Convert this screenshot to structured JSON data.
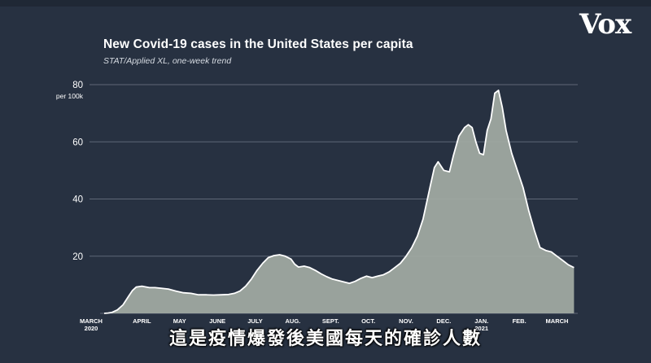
{
  "header": {
    "title": "New Covid-19 cases in the United States per capita",
    "subtitle": "STAT/Applied XL, one-week trend",
    "logo": "Vox"
  },
  "caption": "這是疫情爆發後美國每天的確診人數",
  "colors": {
    "background": "#273141",
    "area_fill": "#a3aba4",
    "line": "#ffffff",
    "grid": "#5f6877",
    "text": "#ffffff"
  },
  "chart_data": {
    "type": "area",
    "title": "New Covid-19 cases in the United States per capita",
    "subtitle": "STAT/Applied XL, one-week trend",
    "ylabel": "per 100k",
    "ylim": [
      0,
      80
    ],
    "yticks": [
      "20",
      "40",
      "60",
      "80"
    ],
    "grid": true,
    "xticks": [
      {
        "label": "MARCH",
        "sublabel": "2020",
        "x": 0
      },
      {
        "label": "APRIL",
        "x": 1
      },
      {
        "label": "MAY",
        "x": 2
      },
      {
        "label": "JUNE",
        "x": 3
      },
      {
        "label": "JULY",
        "x": 4
      },
      {
        "label": "AUG.",
        "x": 5
      },
      {
        "label": "SEPT.",
        "x": 6
      },
      {
        "label": "OCT.",
        "x": 7
      },
      {
        "label": "NOV.",
        "x": 8
      },
      {
        "label": "DEC.",
        "x": 9
      },
      {
        "label": "JAN.",
        "sublabel": "2021",
        "x": 10
      },
      {
        "label": "FEB.",
        "x": 11
      },
      {
        "label": "MARCH",
        "x": 12
      }
    ],
    "series": [
      {
        "x": [
          0,
          0.1,
          0.2,
          0.35,
          0.5,
          0.65,
          0.75,
          0.85,
          1.0,
          1.2,
          1.35,
          1.5,
          1.7,
          1.9,
          2.1,
          2.3,
          2.5,
          2.7,
          2.9,
          3.1,
          3.3,
          3.45,
          3.6,
          3.75,
          3.9,
          4.05,
          4.2,
          4.35,
          4.5,
          4.65,
          4.8,
          4.95,
          5.05,
          5.15,
          5.3,
          5.45,
          5.6,
          5.75,
          5.9,
          6.05,
          6.2,
          6.35,
          6.5,
          6.65,
          6.8,
          6.95,
          7.1,
          7.25,
          7.4,
          7.55,
          7.7,
          7.85,
          8.0,
          8.15,
          8.3,
          8.45,
          8.55,
          8.65,
          8.75,
          8.85,
          9.0,
          9.15,
          9.25,
          9.4,
          9.55,
          9.65,
          9.75,
          9.85,
          9.95,
          10.05,
          10.15,
          10.25,
          10.35,
          10.45,
          10.55,
          10.65,
          10.8,
          10.95,
          11.1,
          11.25,
          11.4,
          11.55,
          11.7,
          11.85,
          12.0,
          12.15,
          12.3,
          12.45
        ],
        "y": [
          0,
          0.1,
          0.3,
          1.2,
          3,
          6,
          8,
          9.2,
          9.5,
          9,
          9,
          8.8,
          8.5,
          7.8,
          7.2,
          7,
          6.5,
          6.5,
          6.4,
          6.5,
          6.6,
          7,
          7.8,
          9.5,
          12,
          15,
          17.5,
          19.5,
          20.2,
          20.5,
          20,
          19,
          17.2,
          16.2,
          16.5,
          16,
          15,
          13.8,
          12.8,
          12,
          11.5,
          11,
          10.5,
          11.2,
          12.2,
          13,
          12.5,
          13,
          13.5,
          14.5,
          16,
          17.5,
          20,
          23,
          27,
          33,
          39,
          45,
          51,
          53,
          50,
          49.5,
          55,
          62,
          65,
          66,
          65,
          60,
          56,
          55.5,
          64,
          68,
          77,
          78,
          72,
          64,
          56,
          50,
          44,
          36,
          29,
          23,
          22,
          21.5,
          20,
          18.5,
          17,
          16
        ]
      }
    ]
  }
}
